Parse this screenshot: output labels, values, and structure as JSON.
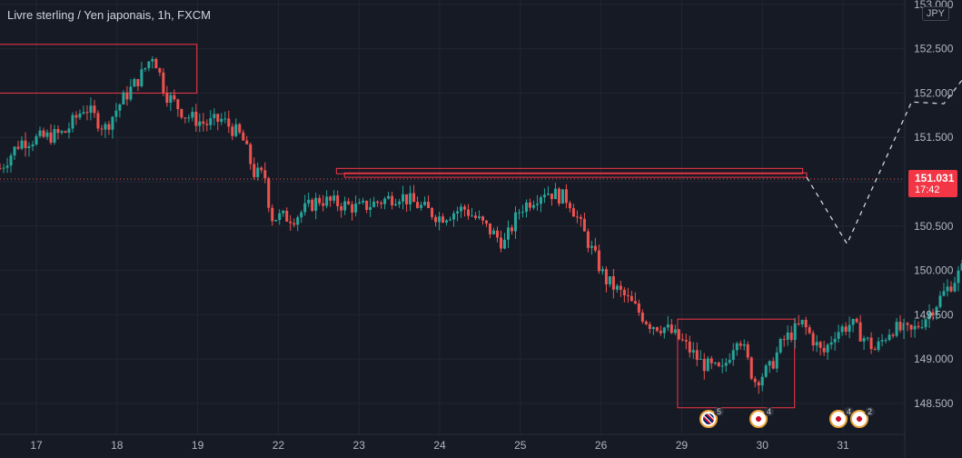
{
  "header": {
    "title": "Livre sterling / Yen japonais, 1h, FXCM"
  },
  "currency_label": "JPY",
  "price_tag": {
    "price": "151.031",
    "countdown": "17:42"
  },
  "colors": {
    "background": "#161a25",
    "up": "#26a69a",
    "down": "#ef5350",
    "box": "#f23645",
    "grid": "#232632",
    "text": "#b2b5be",
    "projection": "#d1d4dc"
  },
  "events": [
    {
      "icon": "uk-flag-icon",
      "count": "5"
    },
    {
      "icon": "jp-flag-icon",
      "count": "4"
    },
    {
      "icon": "jp-flag-icon",
      "count": "4"
    },
    {
      "icon": "jp-flag-icon",
      "count": "2"
    }
  ],
  "chart_data": {
    "type": "candlestick",
    "symbol": "GBPJPY",
    "timeframe": "1h",
    "x_ticks": [
      "17",
      "18",
      "19",
      "22",
      "23",
      "24",
      "25",
      "26",
      "29",
      "30",
      "31"
    ],
    "y_ticks": [
      "153.000",
      "152.500",
      "152.000",
      "151.500",
      "151.000",
      "150.500",
      "150.000",
      "149.500",
      "149.000",
      "148.500"
    ],
    "ylim": [
      148.15,
      153.05
    ],
    "current_price": 151.031,
    "price_path": [
      [
        16.55,
        151.15
      ],
      [
        16.8,
        151.45
      ],
      [
        17.1,
        151.5
      ],
      [
        17.35,
        151.55
      ],
      [
        17.6,
        151.85
      ],
      [
        17.85,
        151.6
      ],
      [
        18.05,
        151.9
      ],
      [
        18.3,
        152.2
      ],
      [
        18.45,
        152.45
      ],
      [
        18.6,
        152.0
      ],
      [
        18.85,
        151.75
      ],
      [
        19.1,
        151.65
      ],
      [
        19.3,
        151.7
      ],
      [
        19.55,
        151.5
      ],
      [
        19.7,
        151.1
      ],
      [
        19.85,
        151.05
      ],
      [
        19.9,
        150.6
      ],
      [
        20.2,
        150.6
      ],
      [
        20.5,
        150.8
      ],
      [
        21.0,
        150.7
      ],
      [
        21.5,
        150.85
      ],
      [
        22.0,
        150.6
      ],
      [
        22.3,
        150.7
      ],
      [
        22.5,
        150.55
      ],
      [
        22.8,
        150.3
      ],
      [
        23.0,
        150.7
      ],
      [
        23.3,
        150.9
      ],
      [
        23.6,
        150.8
      ],
      [
        23.85,
        150.3
      ],
      [
        24.05,
        149.9
      ],
      [
        24.3,
        149.7
      ],
      [
        24.6,
        149.4
      ],
      [
        24.8,
        149.35
      ],
      [
        25.0,
        149.2
      ],
      [
        25.25,
        148.95
      ],
      [
        25.5,
        148.85
      ],
      [
        25.7,
        149.3
      ],
      [
        25.9,
        148.75
      ],
      [
        26.1,
        148.9
      ],
      [
        26.25,
        149.2
      ],
      [
        26.5,
        149.4
      ],
      [
        26.75,
        149.05
      ],
      [
        26.9,
        149.3
      ],
      [
        27.1,
        149.4
      ],
      [
        27.4,
        149.1
      ],
      [
        27.6,
        149.35
      ],
      [
        27.85,
        149.3
      ],
      [
        28.05,
        149.5
      ],
      [
        28.3,
        149.8
      ],
      [
        28.55,
        150.1
      ],
      [
        28.8,
        150.0
      ],
      [
        29.05,
        150.3
      ],
      [
        29.3,
        150.4
      ],
      [
        29.55,
        150.45
      ],
      [
        29.75,
        150.6
      ],
      [
        29.9,
        151.05
      ]
    ],
    "zones": [
      {
        "x": [
          16.0,
          18.99
        ],
        "y": [
          152.0,
          152.55
        ]
      },
      {
        "x": [
          20.72,
          26.5
        ],
        "y": [
          151.09,
          151.15
        ]
      },
      {
        "x": [
          20.82,
          26.55
        ],
        "y": [
          151.05,
          151.1
        ]
      },
      {
        "x": [
          24.95,
          26.4
        ],
        "y": [
          148.45,
          149.45
        ]
      }
    ],
    "projection": [
      [
        26.55,
        151.05
      ],
      [
        27.05,
        150.3
      ],
      [
        27.85,
        151.9
      ],
      [
        28.25,
        151.88
      ],
      [
        29.2,
        153.0
      ]
    ],
    "grid": true
  }
}
